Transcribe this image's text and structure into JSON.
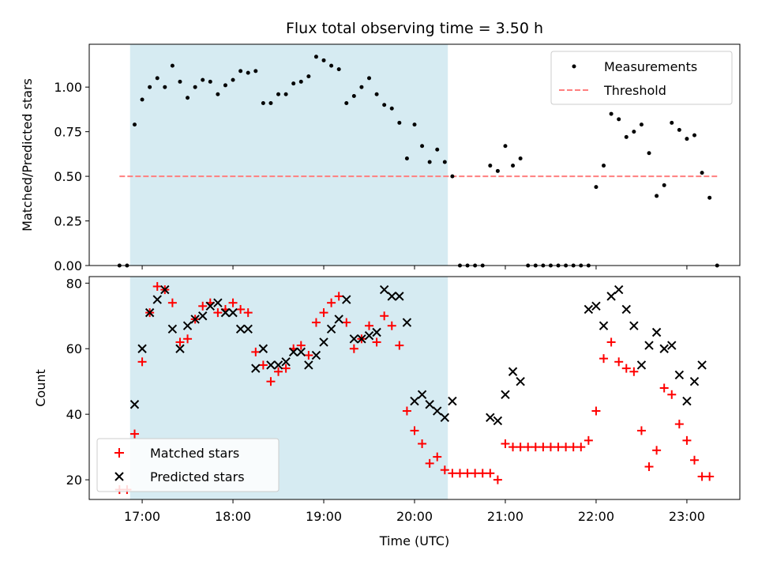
{
  "chart_data": [
    {
      "type": "scatter",
      "title": "Flux total observing time = 3.50 h",
      "xlabel": "",
      "ylabel": "Matched/Predicted stars",
      "ylim": [
        0,
        1.24
      ],
      "yticks": [
        "0.00",
        "0.25",
        "0.50",
        "0.75",
        "1.00"
      ],
      "ytick_values": [
        0,
        0.25,
        0.5,
        0.75,
        1.0
      ],
      "shaded_interval": [
        "16:52",
        "20:22"
      ],
      "shade_color": "#add8e6",
      "legend_position": "upper right",
      "series": [
        {
          "name": "Measurements",
          "color": "#000000",
          "marker": "dot",
          "points": [
            [
              "16:45",
              0.0
            ],
            [
              "16:50",
              0.0
            ],
            [
              "16:55",
              0.79
            ],
            [
              "17:00",
              0.93
            ],
            [
              "17:05",
              1.0
            ],
            [
              "17:10",
              1.05
            ],
            [
              "17:15",
              1.0
            ],
            [
              "17:20",
              1.12
            ],
            [
              "17:25",
              1.03
            ],
            [
              "17:30",
              0.94
            ],
            [
              "17:35",
              1.0
            ],
            [
              "17:40",
              1.04
            ],
            [
              "17:45",
              1.03
            ],
            [
              "17:50",
              0.96
            ],
            [
              "17:55",
              1.01
            ],
            [
              "18:00",
              1.04
            ],
            [
              "18:05",
              1.09
            ],
            [
              "18:10",
              1.08
            ],
            [
              "18:15",
              1.09
            ],
            [
              "18:20",
              0.91
            ],
            [
              "18:25",
              0.91
            ],
            [
              "18:30",
              0.96
            ],
            [
              "18:35",
              0.96
            ],
            [
              "18:40",
              1.02
            ],
            [
              "18:45",
              1.03
            ],
            [
              "18:50",
              1.06
            ],
            [
              "18:55",
              1.17
            ],
            [
              "19:00",
              1.15
            ],
            [
              "19:05",
              1.12
            ],
            [
              "19:10",
              1.1
            ],
            [
              "19:15",
              0.91
            ],
            [
              "19:20",
              0.95
            ],
            [
              "19:25",
              1.0
            ],
            [
              "19:30",
              1.05
            ],
            [
              "19:35",
              0.96
            ],
            [
              "19:40",
              0.9
            ],
            [
              "19:45",
              0.88
            ],
            [
              "19:50",
              0.8
            ],
            [
              "19:55",
              0.6
            ],
            [
              "20:00",
              0.79
            ],
            [
              "20:05",
              0.67
            ],
            [
              "20:10",
              0.58
            ],
            [
              "20:15",
              0.65
            ],
            [
              "20:20",
              0.58
            ],
            [
              "20:25",
              0.5
            ],
            [
              "20:30",
              0.0
            ],
            [
              "20:35",
              0.0
            ],
            [
              "20:40",
              0.0
            ],
            [
              "20:45",
              0.0
            ],
            [
              "20:50",
              0.56
            ],
            [
              "20:55",
              0.53
            ],
            [
              "21:00",
              0.67
            ],
            [
              "21:05",
              0.56
            ],
            [
              "21:10",
              0.6
            ],
            [
              "21:15",
              0.0
            ],
            [
              "21:20",
              0.0
            ],
            [
              "21:25",
              0.0
            ],
            [
              "21:30",
              0.0
            ],
            [
              "21:35",
              0.0
            ],
            [
              "21:40",
              0.0
            ],
            [
              "21:45",
              0.0
            ],
            [
              "21:50",
              0.0
            ],
            [
              "21:55",
              0.0
            ],
            [
              "22:00",
              0.44
            ],
            [
              "22:05",
              0.56
            ],
            [
              "22:10",
              0.85
            ],
            [
              "22:15",
              0.82
            ],
            [
              "22:20",
              0.72
            ],
            [
              "22:25",
              0.75
            ],
            [
              "22:30",
              0.79
            ],
            [
              "22:35",
              0.63
            ],
            [
              "22:40",
              0.39
            ],
            [
              "22:45",
              0.45
            ],
            [
              "22:50",
              0.8
            ],
            [
              "22:55",
              0.76
            ],
            [
              "23:00",
              0.71
            ],
            [
              "23:05",
              0.73
            ],
            [
              "23:10",
              0.52
            ],
            [
              "23:15",
              0.38
            ],
            [
              "23:20",
              0.0
            ]
          ]
        },
        {
          "name": "Threshold",
          "color": "#ff7f7f",
          "style": "dashed",
          "points": [
            [
              "16:45",
              0.5
            ],
            [
              "23:20",
              0.5
            ]
          ]
        }
      ]
    },
    {
      "type": "scatter",
      "title": "",
      "xlabel": "Time (UTC)",
      "ylabel": "Count",
      "ylim": [
        14,
        82
      ],
      "xlim": [
        "16:25",
        "23:35"
      ],
      "xticks": [
        "17:00",
        "18:00",
        "19:00",
        "20:00",
        "21:00",
        "22:00",
        "23:00"
      ],
      "yticks": [
        "20",
        "40",
        "60",
        "80"
      ],
      "ytick_values": [
        20,
        40,
        60,
        80
      ],
      "shaded_interval": [
        "16:52",
        "20:22"
      ],
      "legend_position": "lower left",
      "series": [
        {
          "name": "Matched stars",
          "color": "#ff0000",
          "marker": "plus",
          "points": [
            [
              "16:45",
              17
            ],
            [
              "16:50",
              17
            ],
            [
              "16:55",
              34
            ],
            [
              "17:00",
              56
            ],
            [
              "17:05",
              71
            ],
            [
              "17:10",
              79
            ],
            [
              "17:15",
              78
            ],
            [
              "17:20",
              74
            ],
            [
              "17:25",
              62
            ],
            [
              "17:30",
              63
            ],
            [
              "17:35",
              69
            ],
            [
              "17:40",
              73
            ],
            [
              "17:45",
              74
            ],
            [
              "17:50",
              71
            ],
            [
              "17:55",
              72
            ],
            [
              "18:00",
              74
            ],
            [
              "18:05",
              72
            ],
            [
              "18:10",
              71
            ],
            [
              "18:15",
              59
            ],
            [
              "18:20",
              55
            ],
            [
              "18:25",
              50
            ],
            [
              "18:30",
              53
            ],
            [
              "18:35",
              54
            ],
            [
              "18:40",
              60
            ],
            [
              "18:45",
              61
            ],
            [
              "18:50",
              58
            ],
            [
              "18:55",
              68
            ],
            [
              "19:00",
              71
            ],
            [
              "19:05",
              74
            ],
            [
              "19:10",
              76
            ],
            [
              "19:15",
              68
            ],
            [
              "19:20",
              60
            ],
            [
              "19:25",
              63
            ],
            [
              "19:30",
              67
            ],
            [
              "19:35",
              62
            ],
            [
              "19:40",
              70
            ],
            [
              "19:45",
              67
            ],
            [
              "19:50",
              61
            ],
            [
              "19:55",
              41
            ],
            [
              "20:00",
              35
            ],
            [
              "20:05",
              31
            ],
            [
              "20:10",
              25
            ],
            [
              "20:15",
              27
            ],
            [
              "20:20",
              23
            ],
            [
              "20:25",
              22
            ],
            [
              "20:30",
              22
            ],
            [
              "20:35",
              22
            ],
            [
              "20:40",
              22
            ],
            [
              "20:45",
              22
            ],
            [
              "20:50",
              22
            ],
            [
              "20:55",
              20
            ],
            [
              "21:00",
              31
            ],
            [
              "21:05",
              30
            ],
            [
              "21:10",
              30
            ],
            [
              "21:15",
              30
            ],
            [
              "21:20",
              30
            ],
            [
              "21:25",
              30
            ],
            [
              "21:30",
              30
            ],
            [
              "21:35",
              30
            ],
            [
              "21:40",
              30
            ],
            [
              "21:45",
              30
            ],
            [
              "21:50",
              30
            ],
            [
              "21:55",
              32
            ],
            [
              "22:00",
              41
            ],
            [
              "22:05",
              57
            ],
            [
              "22:10",
              62
            ],
            [
              "22:15",
              56
            ],
            [
              "22:20",
              54
            ],
            [
              "22:25",
              53
            ],
            [
              "22:30",
              35
            ],
            [
              "22:35",
              24
            ],
            [
              "22:40",
              29
            ],
            [
              "22:45",
              48
            ],
            [
              "22:50",
              46
            ],
            [
              "22:55",
              37
            ],
            [
              "23:00",
              32
            ],
            [
              "23:05",
              26
            ],
            [
              "23:10",
              21
            ],
            [
              "23:15",
              21
            ]
          ]
        },
        {
          "name": "Predicted stars",
          "color": "#000000",
          "marker": "x",
          "points": [
            [
              "16:55",
              43
            ],
            [
              "17:00",
              60
            ],
            [
              "17:05",
              71
            ],
            [
              "17:10",
              75
            ],
            [
              "17:15",
              78
            ],
            [
              "17:20",
              66
            ],
            [
              "17:25",
              60
            ],
            [
              "17:30",
              67
            ],
            [
              "17:35",
              69
            ],
            [
              "17:40",
              70
            ],
            [
              "17:45",
              73
            ],
            [
              "17:50",
              74
            ],
            [
              "17:55",
              71
            ],
            [
              "18:00",
              71
            ],
            [
              "18:05",
              66
            ],
            [
              "18:10",
              66
            ],
            [
              "18:15",
              54
            ],
            [
              "18:20",
              60
            ],
            [
              "18:25",
              55
            ],
            [
              "18:30",
              55
            ],
            [
              "18:35",
              56
            ],
            [
              "18:40",
              59
            ],
            [
              "18:45",
              59
            ],
            [
              "18:50",
              55
            ],
            [
              "18:55",
              58
            ],
            [
              "19:00",
              62
            ],
            [
              "19:05",
              66
            ],
            [
              "19:10",
              69
            ],
            [
              "19:15",
              75
            ],
            [
              "19:20",
              63
            ],
            [
              "19:25",
              63
            ],
            [
              "19:30",
              64
            ],
            [
              "19:35",
              65
            ],
            [
              "19:40",
              78
            ],
            [
              "19:45",
              76
            ],
            [
              "19:50",
              76
            ],
            [
              "19:55",
              68
            ],
            [
              "20:00",
              44
            ],
            [
              "20:05",
              46
            ],
            [
              "20:10",
              43
            ],
            [
              "20:15",
              41
            ],
            [
              "20:20",
              39
            ],
            [
              "20:25",
              44
            ],
            [
              "20:50",
              39
            ],
            [
              "20:55",
              38
            ],
            [
              "21:00",
              46
            ],
            [
              "21:05",
              53
            ],
            [
              "21:10",
              50
            ],
            [
              "21:55",
              72
            ],
            [
              "22:00",
              73
            ],
            [
              "22:05",
              67
            ],
            [
              "22:10",
              76
            ],
            [
              "22:15",
              78
            ],
            [
              "22:20",
              72
            ],
            [
              "22:25",
              67
            ],
            [
              "22:30",
              55
            ],
            [
              "22:35",
              61
            ],
            [
              "22:40",
              65
            ],
            [
              "22:45",
              60
            ],
            [
              "22:50",
              61
            ],
            [
              "22:55",
              52
            ],
            [
              "23:00",
              44
            ],
            [
              "23:05",
              50
            ],
            [
              "23:10",
              55
            ]
          ]
        }
      ]
    }
  ]
}
